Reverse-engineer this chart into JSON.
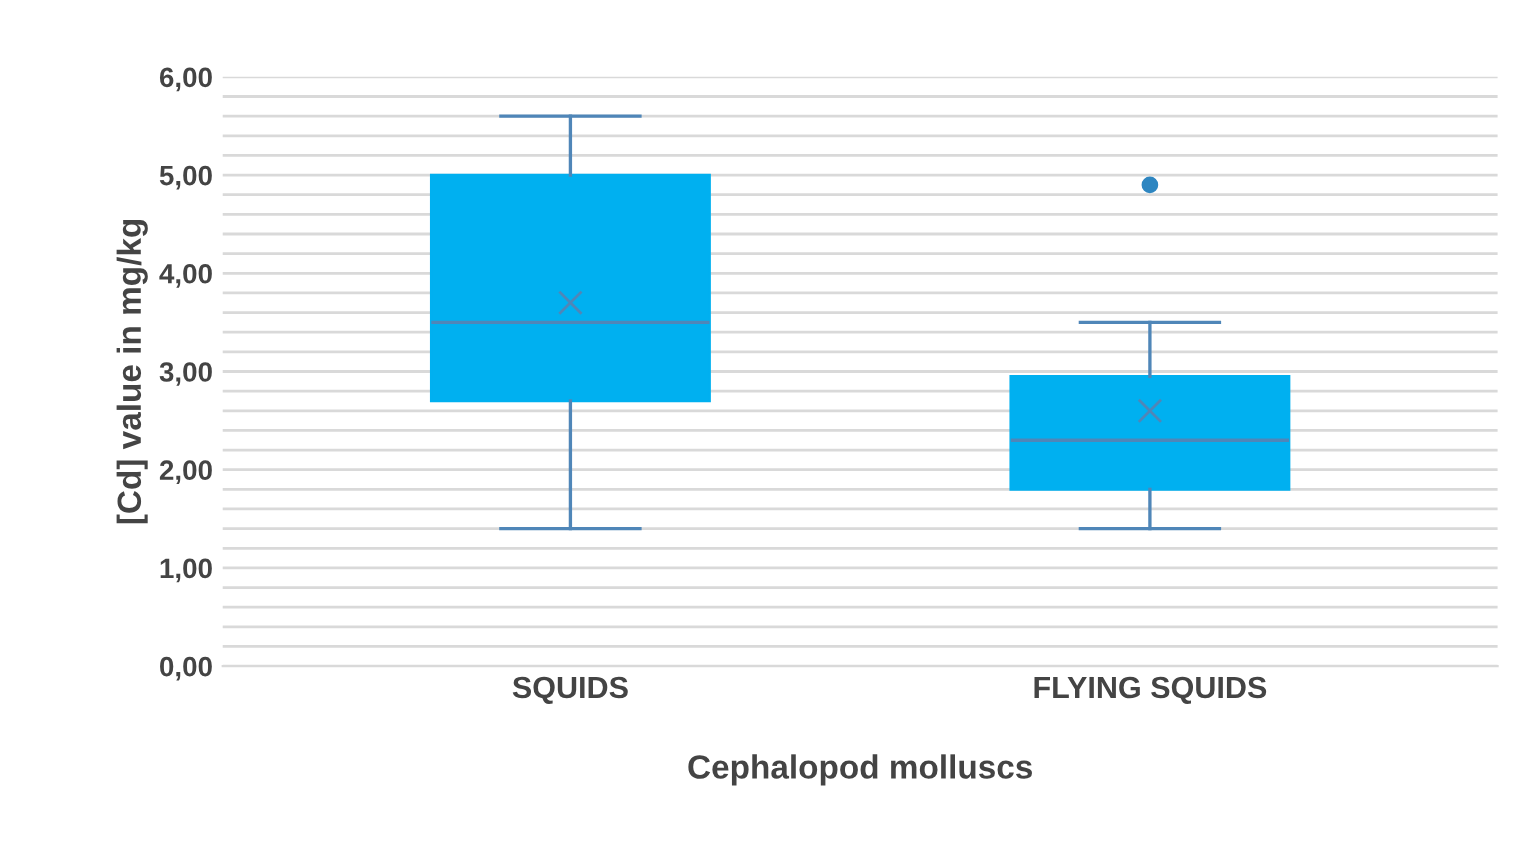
{
  "chart_data": {
    "type": "box",
    "xlabel": "Cephalopod molluscs",
    "ylabel": "[Cd] value in mg/kg",
    "categories": [
      "SQUIDS",
      "FLYING SQUIDS"
    ],
    "boxes": [
      {
        "low": 1.4,
        "q1": 2.7,
        "median": 3.5,
        "q3": 5.0,
        "high": 5.6,
        "mean": 3.7
      },
      {
        "low": 1.4,
        "q1": 1.8,
        "median": 2.3,
        "q3": 2.95,
        "high": 3.5,
        "mean": 2.6,
        "outliers": [
          4.9
        ]
      }
    ],
    "color": "#00b0f0",
    "ylim": [
      0,
      6
    ],
    "yticks": [
      {
        "value": 0,
        "label": "0,00"
      },
      {
        "value": 0.2,
        "label": null
      },
      {
        "value": 0.4,
        "label": null
      },
      {
        "value": 0.6,
        "label": null
      },
      {
        "value": 0.8,
        "label": null
      },
      {
        "value": 1,
        "label": "1,00"
      },
      {
        "value": 1.2,
        "label": null
      },
      {
        "value": 1.4,
        "label": null
      },
      {
        "value": 1.6,
        "label": null
      },
      {
        "value": 1.8,
        "label": null
      },
      {
        "value": 2,
        "label": "2,00"
      },
      {
        "value": 2.2,
        "label": null
      },
      {
        "value": 2.4,
        "label": null
      },
      {
        "value": 2.6,
        "label": null
      },
      {
        "value": 2.8,
        "label": null
      },
      {
        "value": 3,
        "label": "3,00"
      },
      {
        "value": 3.2,
        "label": null
      },
      {
        "value": 3.4,
        "label": null
      },
      {
        "value": 3.6,
        "label": null
      },
      {
        "value": 3.8,
        "label": null
      },
      {
        "value": 4,
        "label": "4,00"
      },
      {
        "value": 4.2,
        "label": null
      },
      {
        "value": 4.4,
        "label": null
      },
      {
        "value": 4.6,
        "label": null
      },
      {
        "value": 4.8,
        "label": null
      },
      {
        "value": 5,
        "label": "5,00"
      },
      {
        "value": 5.2,
        "label": null
      },
      {
        "value": 5.4,
        "label": null
      },
      {
        "value": 5.6,
        "label": null
      },
      {
        "value": 5.8,
        "label": null
      },
      {
        "value": 6,
        "label": "6,00"
      }
    ],
    "grid": "y"
  }
}
